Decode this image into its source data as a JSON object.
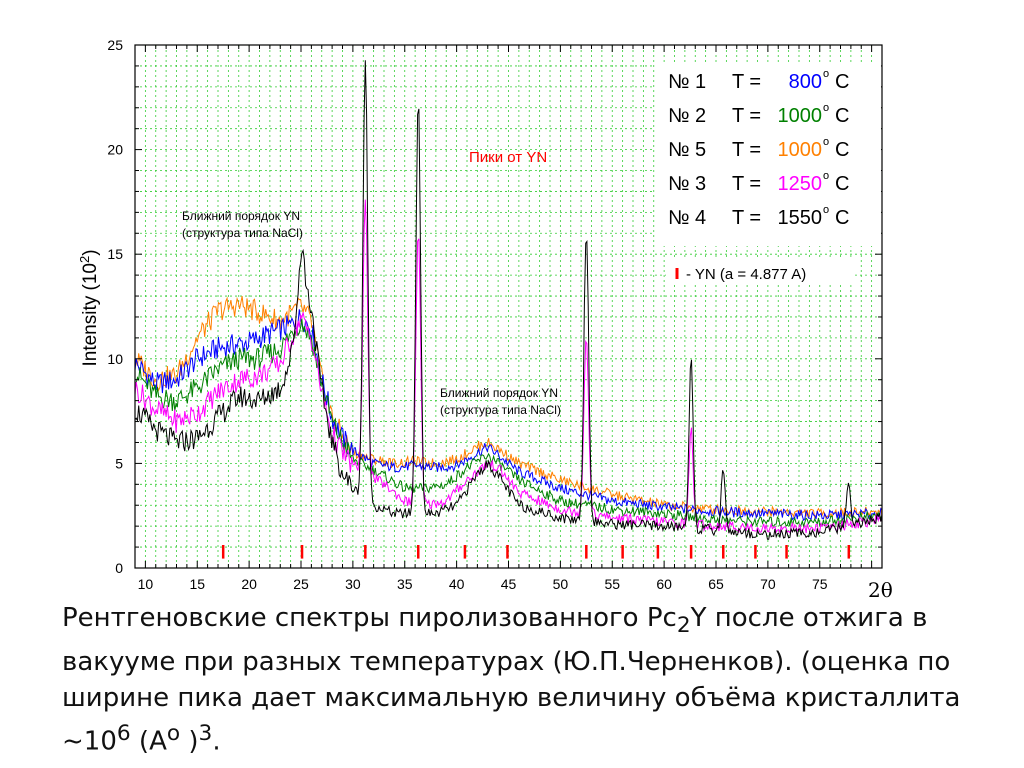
{
  "chart_data": {
    "type": "line",
    "xlabel_base": "2",
    "xlabel_sym": "θ",
    "ylabel_text": "Intensity (10",
    "ylabel_exp": "2",
    "ylabel_close": ")",
    "xlim": [
      9,
      81
    ],
    "ylim": [
      0,
      25
    ],
    "x_ticks": [
      "10",
      "15",
      "20",
      "25",
      "30",
      "35",
      "40",
      "45",
      "50",
      "55",
      "60",
      "65",
      "70",
      "75"
    ],
    "y_ticks": [
      "0",
      "5",
      "10",
      "15",
      "20",
      "25"
    ],
    "grid": true,
    "series_color_key": {
      "800": "#0000ff",
      "1000a": "#008000",
      "1000b": "#ff8000",
      "1250": "#ff00ff",
      "1550": "#000000"
    },
    "legend": [
      {
        "num": "№ 1",
        "teq": "T =",
        "temp": "800",
        "unit": "C",
        "color": "#0000ff"
      },
      {
        "num": "№ 2",
        "teq": "T =",
        "temp": "1000",
        "unit": "C",
        "color": "#008000"
      },
      {
        "num": "№ 5",
        "teq": "T =",
        "temp": "1000",
        "unit": "C",
        "color": "#ff8000"
      },
      {
        "num": "№ 3",
        "teq": "T =",
        "temp": "1250",
        "unit": "C",
        "color": "#ff00ff"
      },
      {
        "num": "№ 4",
        "teq": "T =",
        "temp": "1550",
        "unit": "C",
        "color": "#000000"
      }
    ],
    "yn_legend": "- YN  (a = 4.877 A)",
    "annotations": {
      "peaks_label": "Пики от YN",
      "short_order_1a": "Ближний  порядок  YN",
      "short_order_1b": "(структура типа NaCl)",
      "short_order_2a": "Ближний  порядок  YN",
      "short_order_2b": "(структура типа NaCl)"
    },
    "yn_marker_positions": [
      17.5,
      25.1,
      31.2,
      36.3,
      40.8,
      44.9,
      52.5,
      56.0,
      59.4,
      62.6,
      65.7,
      68.8,
      71.8,
      77.8
    ],
    "peaks": [
      25.1,
      31.2,
      36.3,
      52.5,
      62.6,
      65.7,
      77.8
    ],
    "series": [
      {
        "color": "#0000ff",
        "points": [
          [
            9,
            9.8
          ],
          [
            11,
            8.8
          ],
          [
            13,
            9.0
          ],
          [
            15,
            10.0
          ],
          [
            17,
            10.5
          ],
          [
            20,
            10.8
          ],
          [
            22,
            11.2
          ],
          [
            24,
            11.6
          ],
          [
            25,
            12.0
          ],
          [
            26,
            11.5
          ],
          [
            27,
            9.0
          ],
          [
            28,
            7.2
          ],
          [
            29,
            6.2
          ],
          [
            30,
            5.6
          ],
          [
            32,
            5.0
          ],
          [
            34,
            4.8
          ],
          [
            36,
            4.9
          ],
          [
            38,
            4.8
          ],
          [
            40,
            4.9
          ],
          [
            42,
            5.5
          ],
          [
            43,
            5.8
          ],
          [
            44,
            5.4
          ],
          [
            46,
            4.6
          ],
          [
            50,
            3.8
          ],
          [
            55,
            3.2
          ],
          [
            60,
            2.9
          ],
          [
            65,
            2.7
          ],
          [
            70,
            2.6
          ],
          [
            75,
            2.5
          ],
          [
            81,
            2.6
          ]
        ],
        "peak_h": [
          0,
          0,
          0,
          0,
          0,
          0,
          0
        ]
      },
      {
        "color": "#008000",
        "points": [
          [
            9,
            9.4
          ],
          [
            11,
            8.2
          ],
          [
            13,
            8.0
          ],
          [
            15,
            8.6
          ],
          [
            17,
            9.5
          ],
          [
            19,
            10.0
          ],
          [
            21,
            10.0
          ],
          [
            23,
            10.5
          ],
          [
            25,
            11.8
          ],
          [
            26,
            11.0
          ],
          [
            27,
            8.8
          ],
          [
            28,
            7.0
          ],
          [
            29,
            6.0
          ],
          [
            30,
            5.2
          ],
          [
            33,
            4.4
          ],
          [
            35,
            3.8
          ],
          [
            37,
            3.8
          ],
          [
            39,
            4.0
          ],
          [
            41,
            4.8
          ],
          [
            43,
            5.4
          ],
          [
            44,
            5.0
          ],
          [
            46,
            4.2
          ],
          [
            50,
            3.2
          ],
          [
            55,
            2.8
          ],
          [
            60,
            2.6
          ],
          [
            65,
            2.3
          ],
          [
            70,
            2.2
          ],
          [
            75,
            2.2
          ],
          [
            81,
            2.5
          ]
        ],
        "peak_h": [
          0,
          0,
          0,
          0,
          0,
          0,
          0
        ]
      },
      {
        "color": "#ff8000",
        "points": [
          [
            9,
            10.0
          ],
          [
            11,
            9.0
          ],
          [
            13,
            9.2
          ],
          [
            15,
            11.0
          ],
          [
            17,
            12.3
          ],
          [
            19,
            12.6
          ],
          [
            21,
            12.2
          ],
          [
            23,
            11.8
          ],
          [
            25,
            12.5
          ],
          [
            26,
            11.8
          ],
          [
            27,
            9.0
          ],
          [
            28,
            7.2
          ],
          [
            29,
            6.3
          ],
          [
            30,
            5.5
          ],
          [
            32,
            5.2
          ],
          [
            34,
            5.0
          ],
          [
            36,
            5.1
          ],
          [
            38,
            5.0
          ],
          [
            40,
            5.2
          ],
          [
            42,
            5.8
          ],
          [
            43,
            6.0
          ],
          [
            44,
            5.7
          ],
          [
            46,
            5.0
          ],
          [
            50,
            4.2
          ],
          [
            55,
            3.5
          ],
          [
            60,
            3.0
          ],
          [
            65,
            2.8
          ],
          [
            70,
            2.7
          ],
          [
            75,
            2.6
          ],
          [
            81,
            2.7
          ]
        ],
        "peak_h": [
          0,
          0,
          0,
          0,
          0,
          0,
          0
        ]
      },
      {
        "color": "#ff00ff",
        "points": [
          [
            9,
            8.6
          ],
          [
            11,
            7.6
          ],
          [
            13,
            7.0
          ],
          [
            15,
            7.4
          ],
          [
            17,
            8.4
          ],
          [
            19,
            9.0
          ],
          [
            21,
            9.2
          ],
          [
            23,
            9.8
          ],
          [
            25,
            12.0
          ],
          [
            26,
            11.0
          ],
          [
            27,
            8.4
          ],
          [
            28,
            6.4
          ],
          [
            29,
            5.5
          ],
          [
            30,
            4.9
          ],
          [
            33,
            4.0
          ],
          [
            35,
            3.2
          ],
          [
            37,
            3.0
          ],
          [
            39,
            3.2
          ],
          [
            41,
            4.2
          ],
          [
            43,
            5.0
          ],
          [
            44,
            4.8
          ],
          [
            46,
            3.6
          ],
          [
            50,
            2.8
          ],
          [
            55,
            2.4
          ],
          [
            60,
            2.2
          ],
          [
            65,
            2.0
          ],
          [
            70,
            1.9
          ],
          [
            75,
            1.9
          ],
          [
            81,
            2.3
          ]
        ],
        "peak_h": [
          0,
          13.0,
          13.0,
          8.5,
          4.5,
          0,
          0
        ]
      },
      {
        "color": "#000000",
        "points": [
          [
            9,
            7.6
          ],
          [
            11,
            6.6
          ],
          [
            13,
            6.0
          ],
          [
            15,
            6.2
          ],
          [
            17,
            7.2
          ],
          [
            19,
            8.2
          ],
          [
            21,
            8.0
          ],
          [
            23,
            8.6
          ],
          [
            24,
            10.0
          ],
          [
            25,
            14.0
          ],
          [
            26,
            12.5
          ],
          [
            27,
            8.5
          ],
          [
            28,
            6.0
          ],
          [
            29,
            4.5
          ],
          [
            30,
            3.8
          ],
          [
            32,
            3.0
          ],
          [
            34,
            2.6
          ],
          [
            36,
            2.6
          ],
          [
            38,
            2.6
          ],
          [
            40,
            3.0
          ],
          [
            42,
            4.5
          ],
          [
            43,
            5.0
          ],
          [
            44,
            4.4
          ],
          [
            46,
            3.0
          ],
          [
            50,
            2.4
          ],
          [
            55,
            2.1
          ],
          [
            60,
            2.0
          ],
          [
            65,
            1.8
          ],
          [
            70,
            1.6
          ],
          [
            75,
            1.7
          ],
          [
            81,
            2.4
          ]
        ],
        "peak_h": [
          1.5,
          21.0,
          20.0,
          14.0,
          8.2,
          3.0,
          2.0
        ]
      }
    ]
  },
  "caption": {
    "line1_a": "Рентгеновские спектры пиролизованного  Pc",
    "line1_sub": "2",
    "line1_b": "Y после отжига в",
    "line2": "вакууме при разных температурах (Ю.П.Черненков). (оценка по",
    "line3": "ширине пика дает максимальную величину объёма кристаллита",
    "line4_a": "~10",
    "line4_sup": "6",
    "line4_b": " (А",
    "line4_sup2": "о",
    "line4_c": " )",
    "line4_sup3": "3",
    "line4_d": "."
  }
}
